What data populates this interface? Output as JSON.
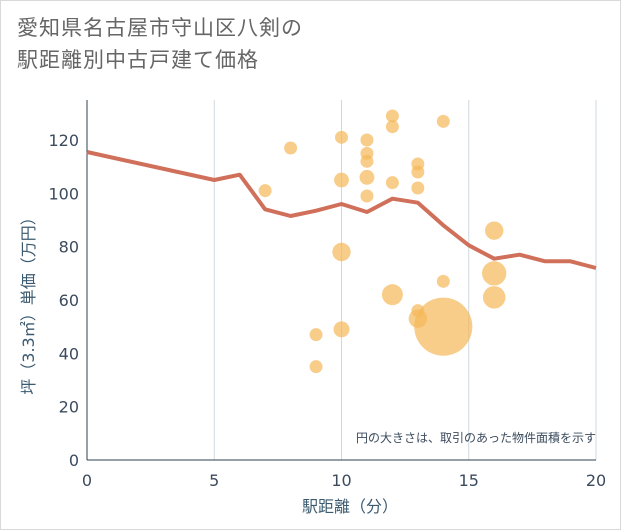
{
  "chart_data": {
    "type": "scatter",
    "title_line1": "愛知県名古屋市守山区八剣の",
    "title_line2": "駅距離別中古戸建て価格",
    "xlabel": "駅距離（分）",
    "ylabel": "坪（3.3㎡）単価（万円）",
    "xlim": [
      0,
      20
    ],
    "ylim": [
      0,
      135
    ],
    "xticks": [
      "0",
      "5",
      "10",
      "15",
      "20"
    ],
    "yticks": [
      "0",
      "20",
      "40",
      "60",
      "80",
      "100",
      "120"
    ],
    "note": "円の大きさは、取引のあった物件面積を示す",
    "colors": {
      "bubble": "#f5b859",
      "line": "#d0705a",
      "grid": "#cfd8e0"
    },
    "scatter": [
      {
        "x": 7,
        "y": 101,
        "s": 1
      },
      {
        "x": 8,
        "y": 117,
        "s": 1
      },
      {
        "x": 9,
        "y": 47,
        "s": 1
      },
      {
        "x": 9,
        "y": 35,
        "s": 1
      },
      {
        "x": 10,
        "y": 121,
        "s": 1
      },
      {
        "x": 10,
        "y": 105,
        "s": 1.3
      },
      {
        "x": 10,
        "y": 78,
        "s": 2
      },
      {
        "x": 10,
        "y": 49,
        "s": 1.5
      },
      {
        "x": 11,
        "y": 120,
        "s": 1
      },
      {
        "x": 11,
        "y": 115,
        "s": 1
      },
      {
        "x": 11,
        "y": 112,
        "s": 1
      },
      {
        "x": 11,
        "y": 106,
        "s": 1.3
      },
      {
        "x": 11,
        "y": 99,
        "s": 1
      },
      {
        "x": 12,
        "y": 129,
        "s": 1
      },
      {
        "x": 12,
        "y": 125,
        "s": 1
      },
      {
        "x": 12,
        "y": 104,
        "s": 1
      },
      {
        "x": 12,
        "y": 62,
        "s": 2.6
      },
      {
        "x": 13,
        "y": 111,
        "s": 1
      },
      {
        "x": 13,
        "y": 108,
        "s": 1
      },
      {
        "x": 13,
        "y": 102,
        "s": 1
      },
      {
        "x": 13,
        "y": 56,
        "s": 1
      },
      {
        "x": 13,
        "y": 53,
        "s": 2
      },
      {
        "x": 14,
        "y": 127,
        "s": 1
      },
      {
        "x": 14,
        "y": 67,
        "s": 1
      },
      {
        "x": 14,
        "y": 50,
        "s": 20
      },
      {
        "x": 16,
        "y": 86,
        "s": 2
      },
      {
        "x": 16,
        "y": 70,
        "s": 3.5
      },
      {
        "x": 16,
        "y": 61,
        "s": 3
      }
    ],
    "line": [
      {
        "x": 0,
        "y": 115.5
      },
      {
        "x": 5,
        "y": 105
      },
      {
        "x": 6,
        "y": 107
      },
      {
        "x": 7,
        "y": 94
      },
      {
        "x": 8,
        "y": 91.5
      },
      {
        "x": 9,
        "y": 93.5
      },
      {
        "x": 10,
        "y": 96
      },
      {
        "x": 11,
        "y": 93
      },
      {
        "x": 12,
        "y": 98
      },
      {
        "x": 13,
        "y": 96.5
      },
      {
        "x": 14,
        "y": 88
      },
      {
        "x": 15,
        "y": 80.5
      },
      {
        "x": 16,
        "y": 75.5
      },
      {
        "x": 17,
        "y": 77
      },
      {
        "x": 18,
        "y": 74.5
      },
      {
        "x": 19,
        "y": 74.5
      },
      {
        "x": 20,
        "y": 72
      }
    ]
  }
}
